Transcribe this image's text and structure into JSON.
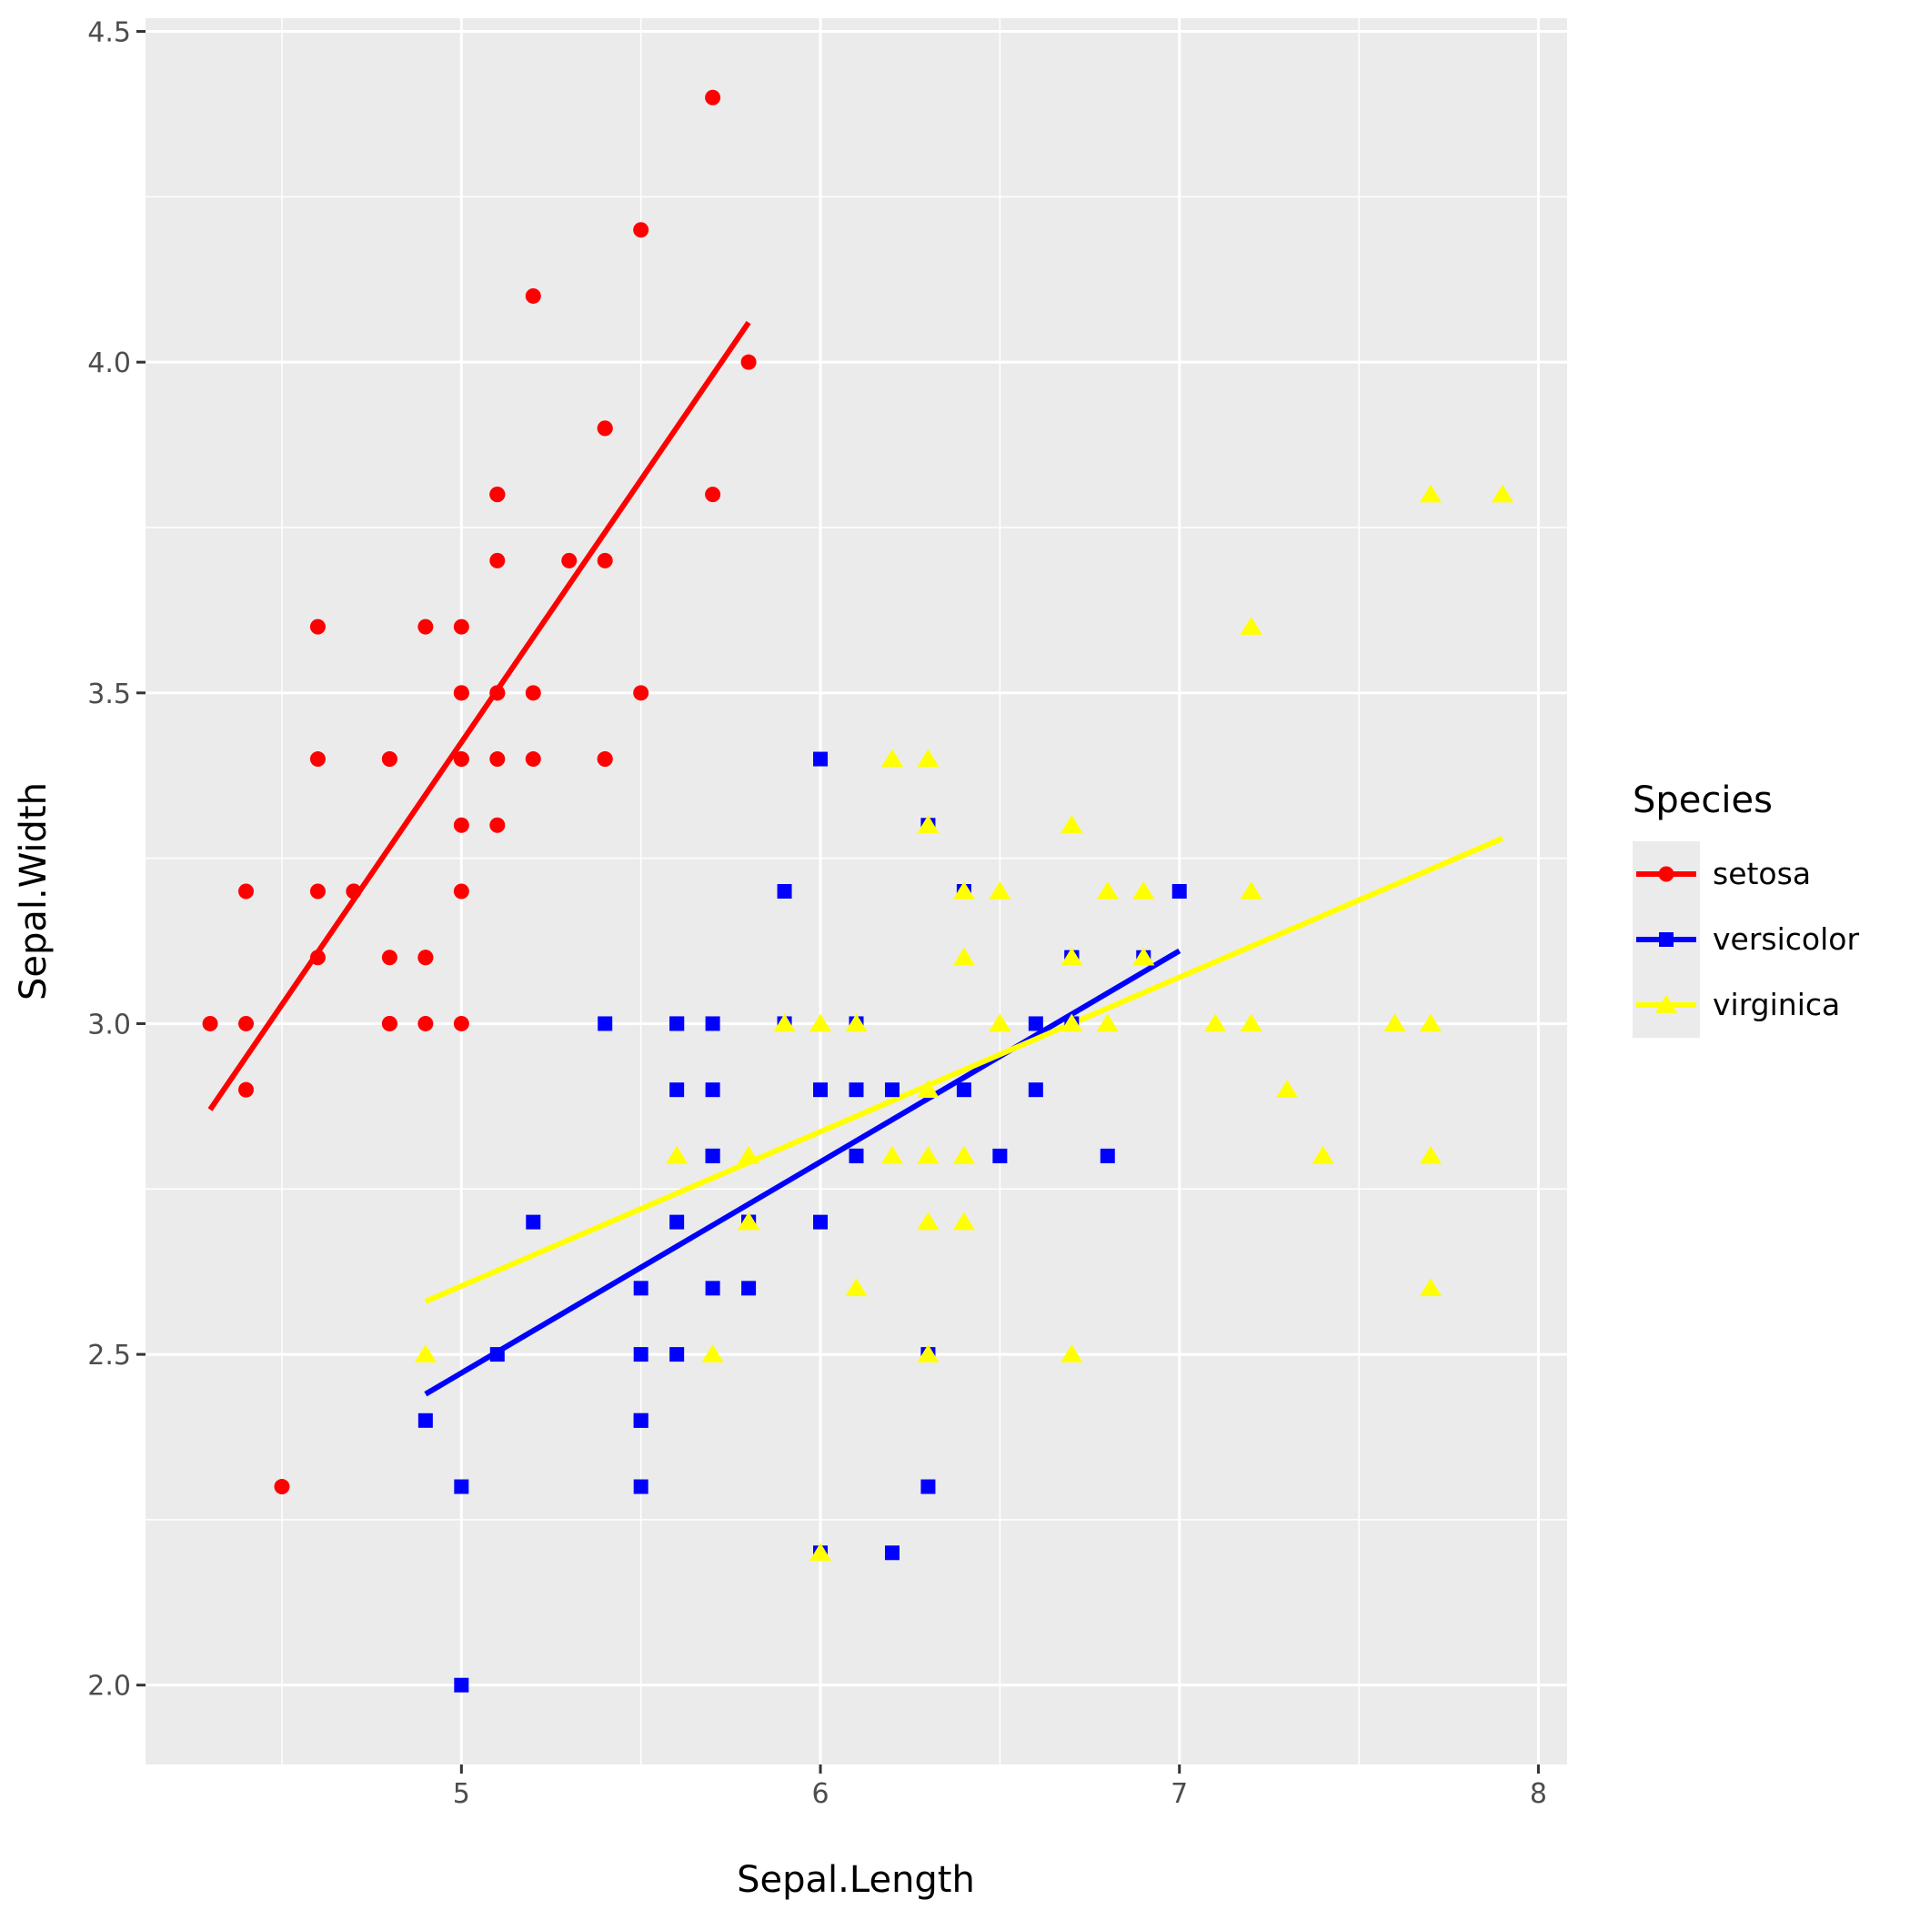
{
  "chart_data": {
    "type": "scatter",
    "xlabel": "Sepal.Length",
    "ylabel": "Sepal.Width",
    "xlim": [
      4.12,
      8.08
    ],
    "ylim": [
      1.88,
      4.52
    ],
    "x_ticks": [
      5,
      6,
      7,
      8
    ],
    "x_tick_labels": [
      "5",
      "6",
      "7",
      "8"
    ],
    "y_ticks": [
      2.0,
      2.5,
      3.0,
      3.5,
      4.0,
      4.5
    ],
    "y_tick_labels": [
      "2.0",
      "2.5",
      "3.0",
      "3.5",
      "4.0",
      "4.5"
    ],
    "grid": true,
    "legend": {
      "title": "Species",
      "position": "right"
    },
    "series": [
      {
        "name": "setosa",
        "color": "#ff0000",
        "marker": "circle",
        "fit_line": [
          [
            4.3,
            2.87
          ],
          [
            5.8,
            4.06
          ]
        ],
        "points": [
          [
            5.1,
            3.5
          ],
          [
            4.9,
            3.0
          ],
          [
            4.7,
            3.2
          ],
          [
            4.6,
            3.1
          ],
          [
            5.0,
            3.6
          ],
          [
            5.4,
            3.9
          ],
          [
            4.6,
            3.4
          ],
          [
            5.0,
            3.4
          ],
          [
            4.4,
            2.9
          ],
          [
            4.9,
            3.1
          ],
          [
            5.4,
            3.7
          ],
          [
            4.8,
            3.4
          ],
          [
            4.8,
            3.0
          ],
          [
            4.3,
            3.0
          ],
          [
            5.8,
            4.0
          ],
          [
            5.7,
            4.4
          ],
          [
            5.4,
            3.9
          ],
          [
            5.1,
            3.5
          ],
          [
            5.7,
            3.8
          ],
          [
            5.1,
            3.8
          ],
          [
            5.4,
            3.4
          ],
          [
            5.1,
            3.7
          ],
          [
            4.6,
            3.6
          ],
          [
            5.1,
            3.3
          ],
          [
            4.8,
            3.4
          ],
          [
            5.0,
            3.0
          ],
          [
            5.0,
            3.4
          ],
          [
            5.2,
            3.5
          ],
          [
            5.2,
            3.4
          ],
          [
            4.7,
            3.2
          ],
          [
            4.8,
            3.1
          ],
          [
            5.4,
            3.4
          ],
          [
            5.2,
            4.1
          ],
          [
            5.5,
            4.2
          ],
          [
            4.9,
            3.1
          ],
          [
            5.0,
            3.2
          ],
          [
            5.5,
            3.5
          ],
          [
            4.9,
            3.6
          ],
          [
            4.4,
            3.0
          ],
          [
            5.1,
            3.4
          ],
          [
            5.0,
            3.5
          ],
          [
            4.5,
            2.3
          ],
          [
            4.4,
            3.2
          ],
          [
            5.0,
            3.5
          ],
          [
            5.1,
            3.8
          ],
          [
            4.8,
            3.0
          ],
          [
            5.1,
            3.8
          ],
          [
            4.6,
            3.2
          ],
          [
            5.3,
            3.7
          ],
          [
            5.0,
            3.3
          ]
        ]
      },
      {
        "name": "versicolor",
        "color": "#0000ff",
        "marker": "square",
        "fit_line": [
          [
            4.9,
            2.44
          ],
          [
            7.0,
            3.11
          ]
        ],
        "points": [
          [
            7.0,
            3.2
          ],
          [
            6.4,
            3.2
          ],
          [
            6.9,
            3.1
          ],
          [
            5.5,
            2.3
          ],
          [
            6.5,
            2.8
          ],
          [
            5.7,
            2.8
          ],
          [
            6.3,
            3.3
          ],
          [
            4.9,
            2.4
          ],
          [
            6.6,
            2.9
          ],
          [
            5.2,
            2.7
          ],
          [
            5.0,
            2.0
          ],
          [
            5.9,
            3.0
          ],
          [
            6.0,
            2.2
          ],
          [
            6.1,
            2.9
          ],
          [
            5.6,
            2.9
          ],
          [
            6.7,
            3.1
          ],
          [
            5.6,
            3.0
          ],
          [
            5.8,
            2.7
          ],
          [
            6.2,
            2.2
          ],
          [
            5.6,
            2.5
          ],
          [
            5.9,
            3.2
          ],
          [
            6.1,
            2.8
          ],
          [
            6.3,
            2.5
          ],
          [
            6.1,
            2.8
          ],
          [
            6.4,
            2.9
          ],
          [
            6.6,
            3.0
          ],
          [
            6.8,
            2.8
          ],
          [
            6.7,
            3.0
          ],
          [
            6.0,
            2.9
          ],
          [
            5.7,
            2.6
          ],
          [
            5.5,
            2.4
          ],
          [
            5.5,
            2.4
          ],
          [
            5.8,
            2.7
          ],
          [
            6.0,
            2.7
          ],
          [
            5.4,
            3.0
          ],
          [
            6.0,
            3.4
          ],
          [
            6.7,
            3.1
          ],
          [
            6.3,
            2.3
          ],
          [
            5.6,
            3.0
          ],
          [
            5.5,
            2.5
          ],
          [
            5.5,
            2.6
          ],
          [
            6.1,
            3.0
          ],
          [
            5.8,
            2.6
          ],
          [
            5.0,
            2.3
          ],
          [
            5.6,
            2.7
          ],
          [
            5.7,
            3.0
          ],
          [
            5.7,
            2.9
          ],
          [
            6.2,
            2.9
          ],
          [
            5.1,
            2.5
          ],
          [
            5.7,
            2.8
          ]
        ]
      },
      {
        "name": "virginica",
        "color": "#ffff00",
        "marker": "triangle",
        "fit_line": [
          [
            4.9,
            2.58
          ],
          [
            7.9,
            3.28
          ]
        ],
        "points": [
          [
            6.3,
            3.3
          ],
          [
            5.8,
            2.7
          ],
          [
            7.1,
            3.0
          ],
          [
            6.3,
            2.9
          ],
          [
            6.5,
            3.0
          ],
          [
            7.6,
            3.0
          ],
          [
            4.9,
            2.5
          ],
          [
            7.3,
            2.9
          ],
          [
            6.7,
            2.5
          ],
          [
            7.2,
            3.6
          ],
          [
            6.5,
            3.2
          ],
          [
            6.4,
            2.7
          ],
          [
            6.8,
            3.0
          ],
          [
            5.7,
            2.5
          ],
          [
            5.8,
            2.8
          ],
          [
            6.4,
            3.2
          ],
          [
            6.5,
            3.0
          ],
          [
            7.7,
            3.8
          ],
          [
            7.7,
            2.6
          ],
          [
            6.0,
            2.2
          ],
          [
            6.9,
            3.2
          ],
          [
            5.6,
            2.8
          ],
          [
            7.7,
            2.8
          ],
          [
            6.3,
            2.7
          ],
          [
            6.7,
            3.3
          ],
          [
            7.2,
            3.2
          ],
          [
            6.2,
            2.8
          ],
          [
            6.1,
            3.0
          ],
          [
            6.4,
            2.8
          ],
          [
            7.2,
            3.0
          ],
          [
            7.4,
            2.8
          ],
          [
            7.9,
            3.8
          ],
          [
            6.4,
            2.8
          ],
          [
            6.3,
            2.8
          ],
          [
            6.1,
            2.6
          ],
          [
            7.7,
            3.0
          ],
          [
            6.3,
            3.4
          ],
          [
            6.4,
            3.1
          ],
          [
            6.0,
            3.0
          ],
          [
            6.9,
            3.1
          ],
          [
            6.7,
            3.1
          ],
          [
            6.9,
            3.1
          ],
          [
            5.8,
            2.7
          ],
          [
            6.8,
            3.2
          ],
          [
            6.7,
            3.3
          ],
          [
            6.7,
            3.0
          ],
          [
            6.3,
            2.5
          ],
          [
            6.5,
            3.0
          ],
          [
            6.2,
            3.4
          ],
          [
            5.9,
            3.0
          ]
        ]
      }
    ]
  }
}
